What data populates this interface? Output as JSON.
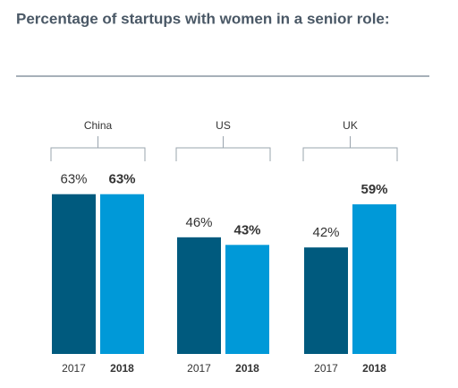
{
  "chart_data": {
    "type": "bar",
    "title": "Percentage of startups with women in a senior role:",
    "categories": [
      "China",
      "US",
      "UK"
    ],
    "series": [
      {
        "name": "2017",
        "color": "#005a7e",
        "values": [
          63,
          46,
          42
        ],
        "value_labels": [
          "63%",
          "46%",
          "42%"
        ]
      },
      {
        "name": "2018",
        "color": "#0099d8",
        "values": [
          63,
          43,
          59
        ],
        "value_labels": [
          "63%",
          "43%",
          "59%"
        ]
      }
    ]
  }
}
